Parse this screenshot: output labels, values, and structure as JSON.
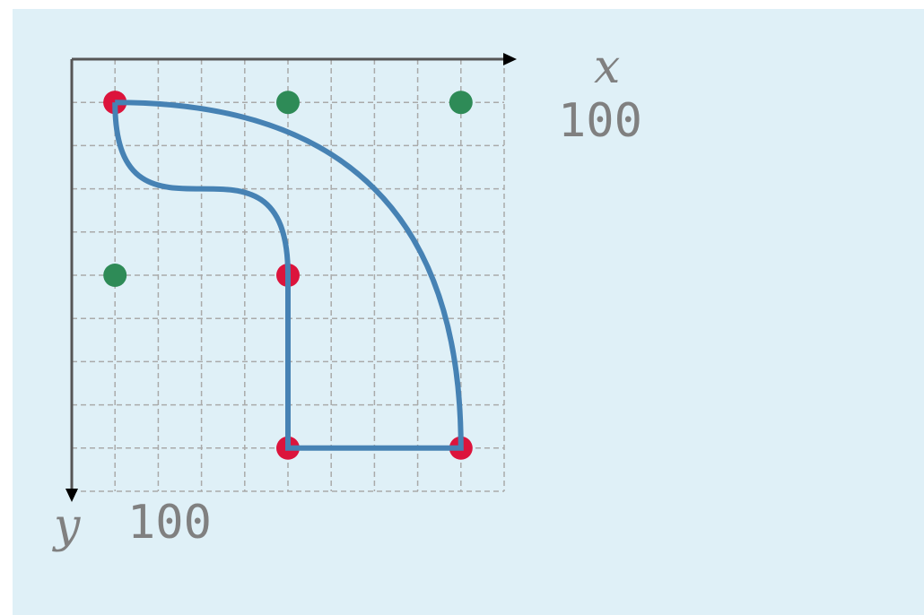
{
  "labels": {
    "x": "x",
    "x_max": 100,
    "y": "y",
    "y_max": 100
  },
  "path": [
    {
      "cmd": "M",
      "args": [
        10,
        10
      ]
    },
    {
      "cmd": "Q",
      "args": [
        90,
        10,
        90,
        90
      ]
    },
    {
      "cmd": "H",
      "args": [
        50
      ]
    },
    {
      "cmd": "V",
      "args": [
        50
      ]
    },
    {
      "cmd": "C",
      "args": [
        50,
        10,
        10,
        50,
        10,
        10
      ]
    }
  ],
  "colors": {
    "path": "#4682b4",
    "endpoint": "#dc143c",
    "control": "#2e8b57"
  }
}
